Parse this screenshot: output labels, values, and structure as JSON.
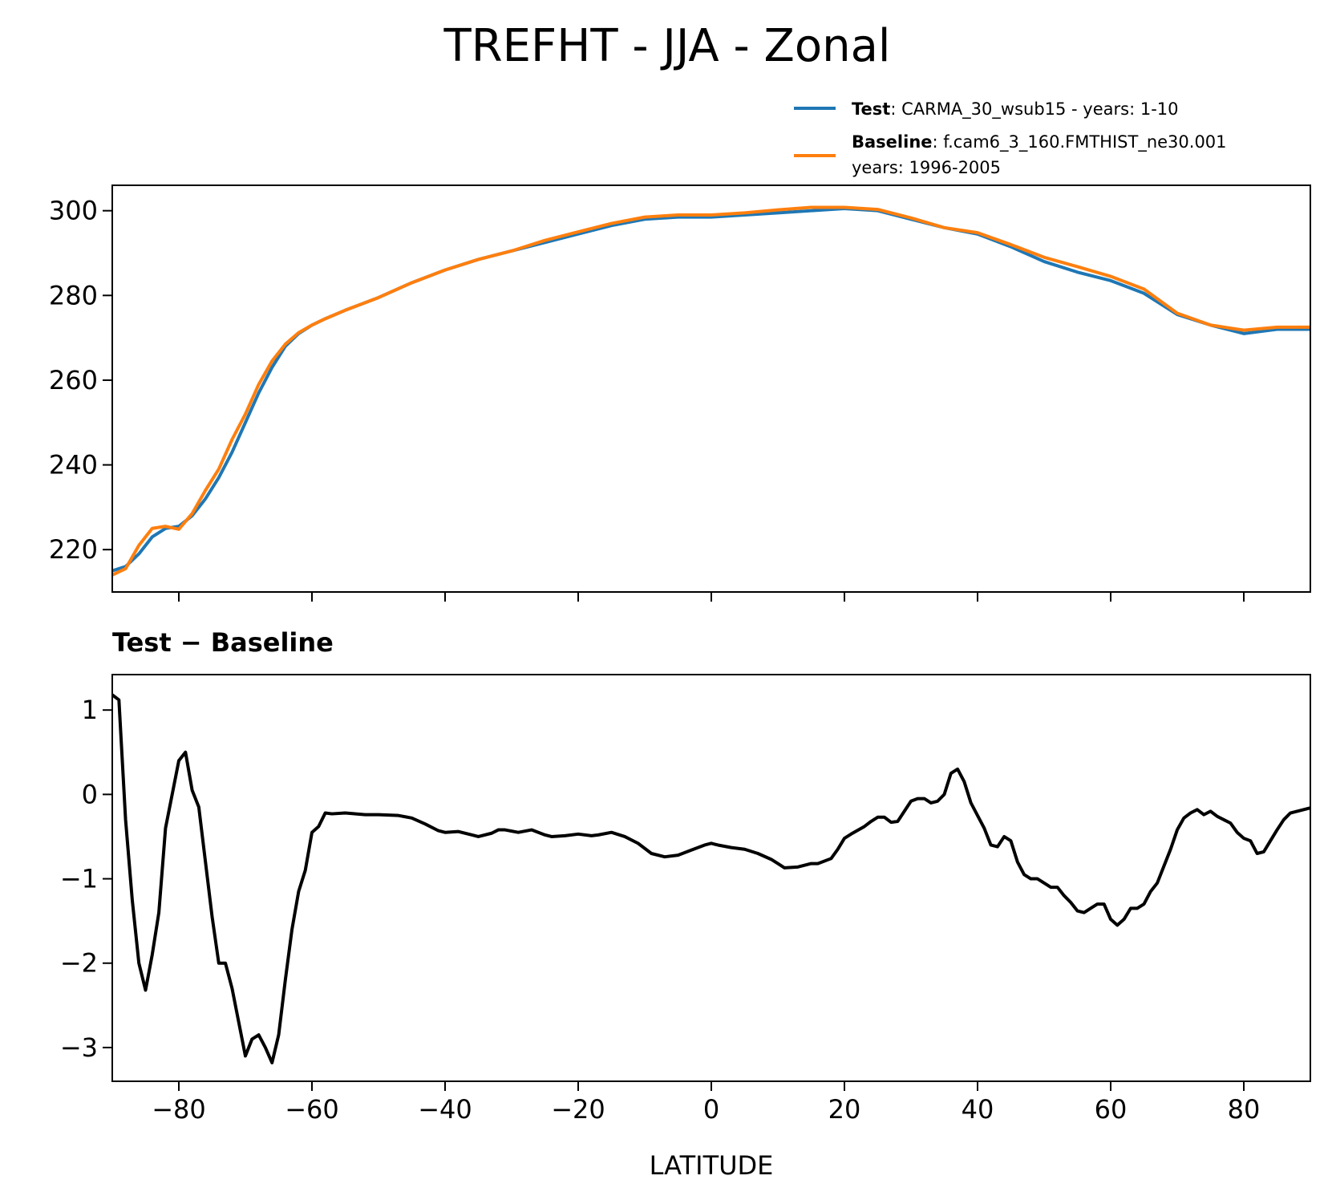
{
  "title": "TREFHT - JJA - Zonal",
  "xlabel": "LATITUDE",
  "legend": [
    {
      "bold": "Test",
      "text": ": CARMA_30_wsub15 - years: 1-10",
      "text2": "",
      "color": "#1f77b4"
    },
    {
      "bold": "Baseline",
      "text": ": f.cam6_3_160.FMTHIST_ne30.001",
      "text2": "years: 1996-2005",
      "color": "#ff7f0e"
    }
  ],
  "colors": {
    "test": "#1f77b4",
    "baseline": "#ff7f0e",
    "diff": "#000000"
  },
  "chart_data": [
    {
      "type": "line",
      "xlim": [
        -90,
        90
      ],
      "ylim": [
        210,
        306
      ],
      "xticks": [
        -80,
        -60,
        -40,
        -20,
        0,
        20,
        40,
        60,
        80
      ],
      "yticks": [
        220,
        240,
        260,
        280,
        300
      ],
      "yticklabels": [
        "220",
        "240",
        "260",
        "280",
        "300"
      ],
      "grid": false,
      "legend_position": "above-right",
      "x": [
        -90,
        -88,
        -86,
        -84,
        -82,
        -80,
        -78,
        -76,
        -74,
        -72,
        -70,
        -68,
        -66,
        -64,
        -62,
        -60,
        -58,
        -55,
        -50,
        -45,
        -40,
        -35,
        -30,
        -25,
        -20,
        -15,
        -10,
        -5,
        0,
        5,
        10,
        15,
        20,
        25,
        30,
        35,
        40,
        45,
        50,
        55,
        60,
        65,
        70,
        75,
        80,
        85,
        90
      ],
      "series": [
        {
          "name": "Test",
          "values": [
            215,
            216,
            219,
            223,
            225,
            225.5,
            228,
            232,
            237,
            243,
            250,
            257,
            263,
            268,
            271,
            273,
            274.5,
            276.5,
            279.5,
            283,
            286,
            288.5,
            290.5,
            292.5,
            294.5,
            296.5,
            298,
            298.5,
            298.5,
            299,
            299.5,
            300,
            300.5,
            300,
            298,
            296,
            294.5,
            291.5,
            288,
            285.5,
            283.5,
            280.5,
            275.5,
            273,
            271,
            272,
            272
          ]
        },
        {
          "name": "Baseline",
          "values": [
            214,
            215.5,
            221,
            225,
            225.5,
            224.8,
            228.5,
            234,
            239,
            246,
            252,
            259,
            264.5,
            268.5,
            271.2,
            273,
            274.5,
            276.5,
            279.5,
            283,
            286,
            288.5,
            290.5,
            293,
            295,
            297,
            298.5,
            299,
            299,
            299.5,
            300.2,
            300.8,
            300.8,
            300.3,
            298.3,
            296,
            294.8,
            292,
            289,
            286.8,
            284.5,
            281.5,
            275.8,
            273,
            271.8,
            272.5,
            272.5
          ]
        }
      ]
    },
    {
      "type": "line",
      "title": "Test − Baseline",
      "xlim": [
        -90,
        90
      ],
      "ylim": [
        -3.4,
        1.42
      ],
      "xticks": [
        -80,
        -60,
        -40,
        -20,
        0,
        20,
        40,
        60,
        80
      ],
      "xticklabels": [
        "−80",
        "−60",
        "−40",
        "−20",
        "0",
        "20",
        "40",
        "60",
        "80"
      ],
      "yticks": [
        -3,
        -2,
        -1,
        0,
        1
      ],
      "yticklabels": [
        "−3",
        "−2",
        "−1",
        "0",
        "1"
      ],
      "grid": false,
      "x": [
        -90,
        -89,
        -88,
        -87,
        -86,
        -85,
        -84,
        -83,
        -82,
        -81,
        -80,
        -79,
        -78,
        -77,
        -76,
        -75,
        -74,
        -73,
        -72,
        -71,
        -70,
        -69,
        -68,
        -67,
        -66,
        -65,
        -64,
        -63,
        -62,
        -61,
        -60,
        -59,
        -58,
        -57,
        -55,
        -52,
        -50,
        -47,
        -45,
        -43,
        -41,
        -40,
        -38,
        -36,
        -35,
        -33,
        -32,
        -31,
        -29,
        -27,
        -25,
        -24,
        -22,
        -20,
        -18,
        -17,
        -15,
        -13,
        -11,
        -9,
        -7,
        -5,
        -3,
        -1,
        0,
        1,
        3,
        5,
        7,
        9,
        10,
        11,
        13,
        14,
        15,
        16,
        18,
        19,
        20,
        21,
        23,
        24,
        25,
        26,
        27,
        28,
        29,
        30,
        31,
        32,
        33,
        34,
        35,
        36,
        37,
        38,
        39,
        40,
        41,
        42,
        43,
        44,
        45,
        46,
        47,
        48,
        49,
        50,
        51,
        52,
        53,
        54,
        55,
        56,
        57,
        58,
        59,
        60,
        61,
        62,
        63,
        64,
        65,
        66,
        67,
        68,
        69,
        70,
        71,
        72,
        73,
        74,
        75,
        76,
        77,
        78,
        79,
        80,
        81,
        82,
        83,
        84,
        85,
        86,
        87,
        88,
        90
      ],
      "series": [
        {
          "name": "Test − Baseline",
          "values": [
            1.18,
            1.12,
            -0.3,
            -1.25,
            -2.0,
            -2.32,
            -1.9,
            -1.4,
            -0.4,
            0.0,
            0.4,
            0.5,
            0.05,
            -0.15,
            -0.8,
            -1.45,
            -2.0,
            -2.0,
            -2.3,
            -2.7,
            -3.1,
            -2.9,
            -2.85,
            -3.0,
            -3.18,
            -2.85,
            -2.2,
            -1.6,
            -1.15,
            -0.9,
            -0.45,
            -0.38,
            -0.22,
            -0.23,
            -0.22,
            -0.24,
            -0.24,
            -0.25,
            -0.28,
            -0.35,
            -0.43,
            -0.45,
            -0.44,
            -0.48,
            -0.5,
            -0.46,
            -0.42,
            -0.42,
            -0.45,
            -0.42,
            -0.48,
            -0.5,
            -0.49,
            -0.47,
            -0.49,
            -0.48,
            -0.45,
            -0.5,
            -0.58,
            -0.7,
            -0.74,
            -0.72,
            -0.66,
            -0.6,
            -0.58,
            -0.6,
            -0.63,
            -0.65,
            -0.7,
            -0.77,
            -0.82,
            -0.87,
            -0.86,
            -0.84,
            -0.82,
            -0.82,
            -0.76,
            -0.65,
            -0.52,
            -0.47,
            -0.38,
            -0.32,
            -0.27,
            -0.27,
            -0.33,
            -0.32,
            -0.2,
            -0.08,
            -0.05,
            -0.05,
            -0.1,
            -0.08,
            0.0,
            0.25,
            0.3,
            0.15,
            -0.1,
            -0.25,
            -0.4,
            -0.6,
            -0.62,
            -0.5,
            -0.55,
            -0.8,
            -0.95,
            -1.0,
            -1.0,
            -1.05,
            -1.1,
            -1.1,
            -1.2,
            -1.28,
            -1.38,
            -1.4,
            -1.35,
            -1.3,
            -1.3,
            -1.48,
            -1.55,
            -1.48,
            -1.35,
            -1.35,
            -1.3,
            -1.15,
            -1.05,
            -0.85,
            -0.65,
            -0.42,
            -0.28,
            -0.22,
            -0.18,
            -0.24,
            -0.2,
            -0.26,
            -0.3,
            -0.34,
            -0.45,
            -0.52,
            -0.55,
            -0.7,
            -0.68,
            -0.55,
            -0.42,
            -0.3,
            -0.22,
            -0.2,
            -0.16
          ]
        }
      ]
    }
  ]
}
